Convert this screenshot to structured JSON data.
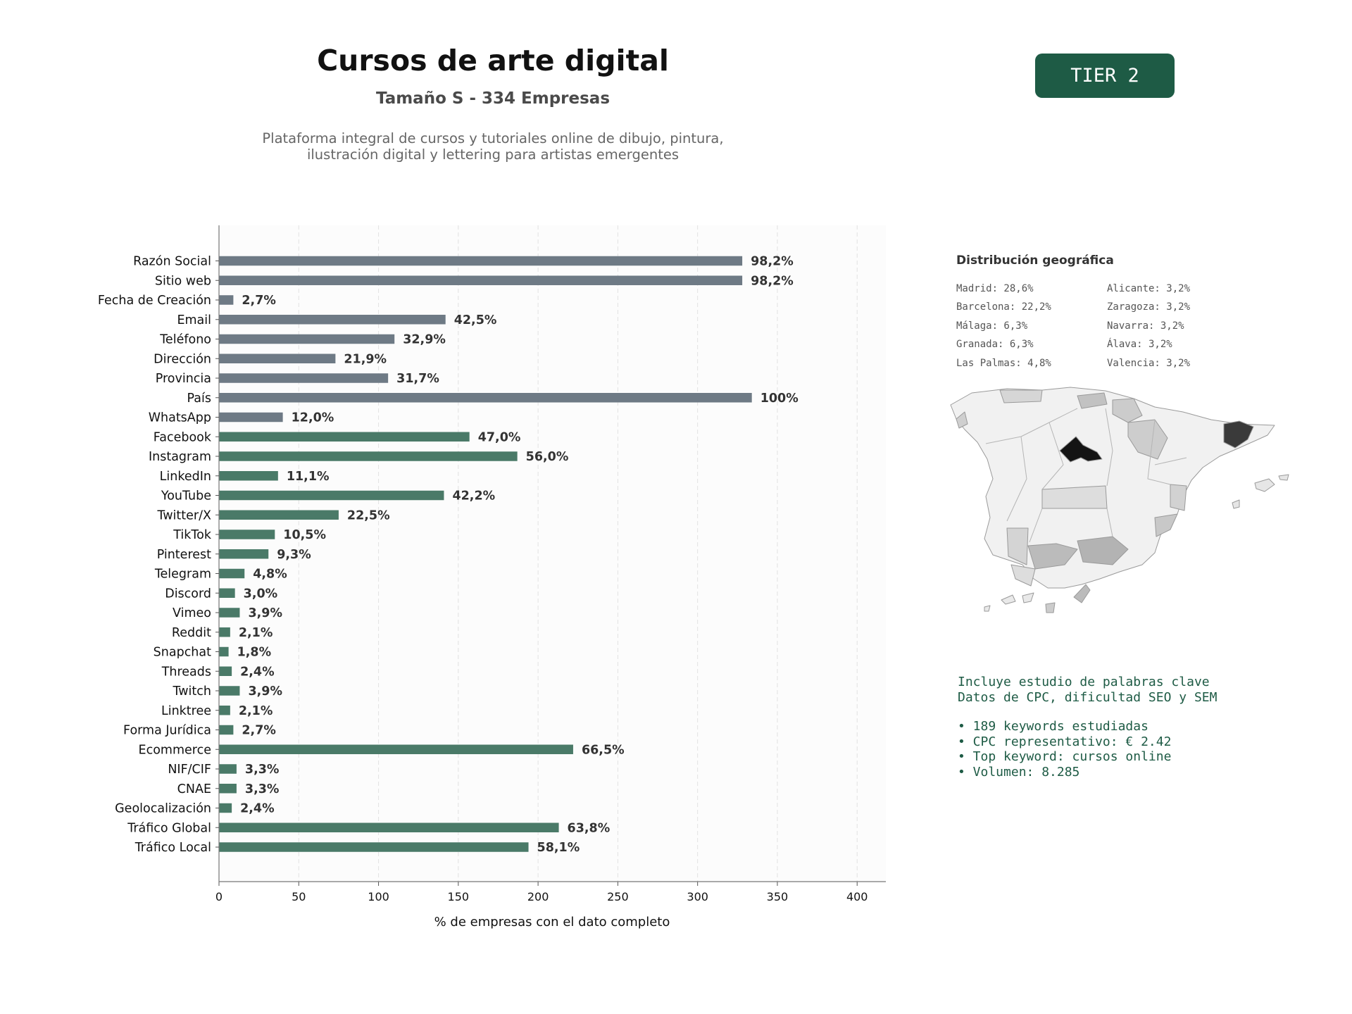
{
  "header": {
    "title": "Cursos de arte digital",
    "subtitle": "Tamaño S - 334 Empresas",
    "description_line1": "Plataforma integral de cursos y tutoriales online de dibujo, pintura,",
    "description_line2": "ilustración digital y lettering para artistas emergentes"
  },
  "badge": {
    "label": "TIER 2",
    "color": "#1e5b45"
  },
  "chart_data": {
    "type": "bar",
    "orientation": "horizontal",
    "categories": [
      "Razón Social",
      "Sitio web",
      "Fecha de Creación",
      "Email",
      "Teléfono",
      "Dirección",
      "Provincia",
      "País",
      "WhatsApp",
      "Facebook",
      "Instagram",
      "LinkedIn",
      "YouTube",
      "Twitter/X",
      "TikTok",
      "Pinterest",
      "Telegram",
      "Discord",
      "Vimeo",
      "Reddit",
      "Snapchat",
      "Threads",
      "Twitch",
      "Linktree",
      "Forma Jurídica",
      "Ecommerce",
      "NIF/CIF",
      "CNAE",
      "Geolocalización",
      "Tráfico Global",
      "Tráfico Local"
    ],
    "values": [
      328,
      328,
      9,
      142,
      110,
      73,
      106,
      334,
      40,
      157,
      187,
      37,
      141,
      75,
      35,
      31,
      16,
      10,
      13,
      7,
      6,
      8,
      13,
      7,
      9,
      222,
      11,
      11,
      8,
      213,
      194
    ],
    "labels": [
      "98,2%",
      "98,2%",
      "2,7%",
      "42,5%",
      "32,9%",
      "21,9%",
      "31,7%",
      "100%",
      "12,0%",
      "47,0%",
      "56,0%",
      "11,1%",
      "42,2%",
      "22,5%",
      "10,5%",
      "9,3%",
      "4,8%",
      "3,0%",
      "3,9%",
      "2,1%",
      "1,8%",
      "2,4%",
      "3,9%",
      "2,1%",
      "2,7%",
      "66,5%",
      "3,3%",
      "3,3%",
      "2,4%",
      "63,8%",
      "58,1%"
    ],
    "groups": [
      "basic",
      "basic",
      "basic",
      "basic",
      "basic",
      "basic",
      "basic",
      "basic",
      "basic",
      "social",
      "social",
      "social",
      "social",
      "social",
      "social",
      "social",
      "social",
      "social",
      "social",
      "social",
      "social",
      "social",
      "social",
      "social",
      "social",
      "social",
      "social",
      "social",
      "social",
      "social",
      "social"
    ],
    "colors": {
      "basic": "#6e7a85",
      "social": "#4a7a68"
    },
    "xlabel": "% de empresas con el dato completo",
    "ylabel": "",
    "xlim": [
      0,
      418
    ],
    "xticks": [
      0,
      50,
      100,
      150,
      200,
      250,
      300,
      350,
      400
    ],
    "grid": "vertical-dashed"
  },
  "geo": {
    "title": "Distribución geográfica",
    "left": [
      "Madrid: 28,6%",
      "Barcelona: 22,2%",
      "Málaga: 6,3%",
      "Granada: 6,3%",
      "Las Palmas: 4,8%"
    ],
    "right": [
      "Alicante: 3,2%",
      "Zaragoza: 3,2%",
      "Navarra: 3,2%",
      "Álava: 3,2%",
      "Valencia: 3,2%"
    ],
    "map_icon": "spain-provinces-map"
  },
  "keywords": {
    "line1": "Incluye estudio de palabras clave",
    "line2": "Datos de CPC, dificultad SEO y SEM",
    "bullet1": "• 189 keywords estudiadas",
    "bullet2": "• CPC representativo: € 2.42",
    "bullet3": "• Top keyword: cursos online",
    "bullet4": "• Volumen: 8.285"
  }
}
